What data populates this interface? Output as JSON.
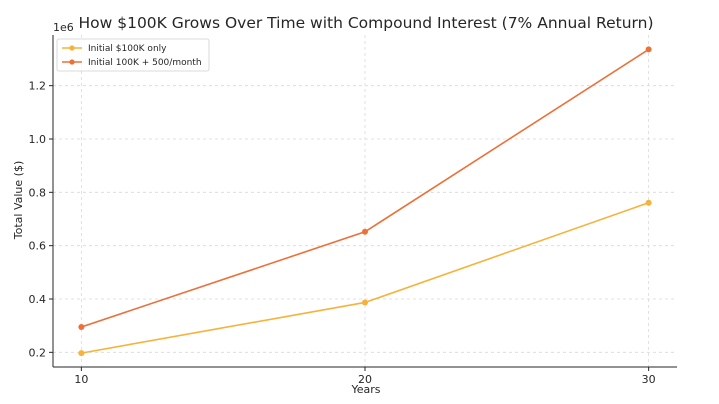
{
  "chart_data": {
    "type": "line",
    "title": "How $100K Grows Over Time with Compound Interest (7% Annual Return)",
    "xlabel": "Years",
    "ylabel": "Total Value ($)",
    "y_offset_label": "1e6",
    "x": [
      10,
      20,
      30
    ],
    "x_ticks": [
      10,
      20,
      30
    ],
    "y_ticks": [
      0.2,
      0.4,
      0.6,
      0.8,
      1.0,
      1.2
    ],
    "y_tick_labels": [
      "0.2",
      "0.4",
      "0.6",
      "0.8",
      "1.0",
      "1.2"
    ],
    "xlim": [
      9,
      31
    ],
    "ylim": [
      0.145,
      1.39
    ],
    "y_scale_note": "values in millions (×1e6)",
    "grid": true,
    "legend_position": "top-left",
    "series": [
      {
        "name": "Initial $100K only",
        "values": [
          0.197,
          0.387,
          0.761
        ],
        "color": "#f6b23a"
      },
      {
        "name": "Initial 100K + 500/month",
        "values": [
          0.295,
          0.652,
          1.336
        ],
        "color": "#ec7038"
      }
    ]
  }
}
